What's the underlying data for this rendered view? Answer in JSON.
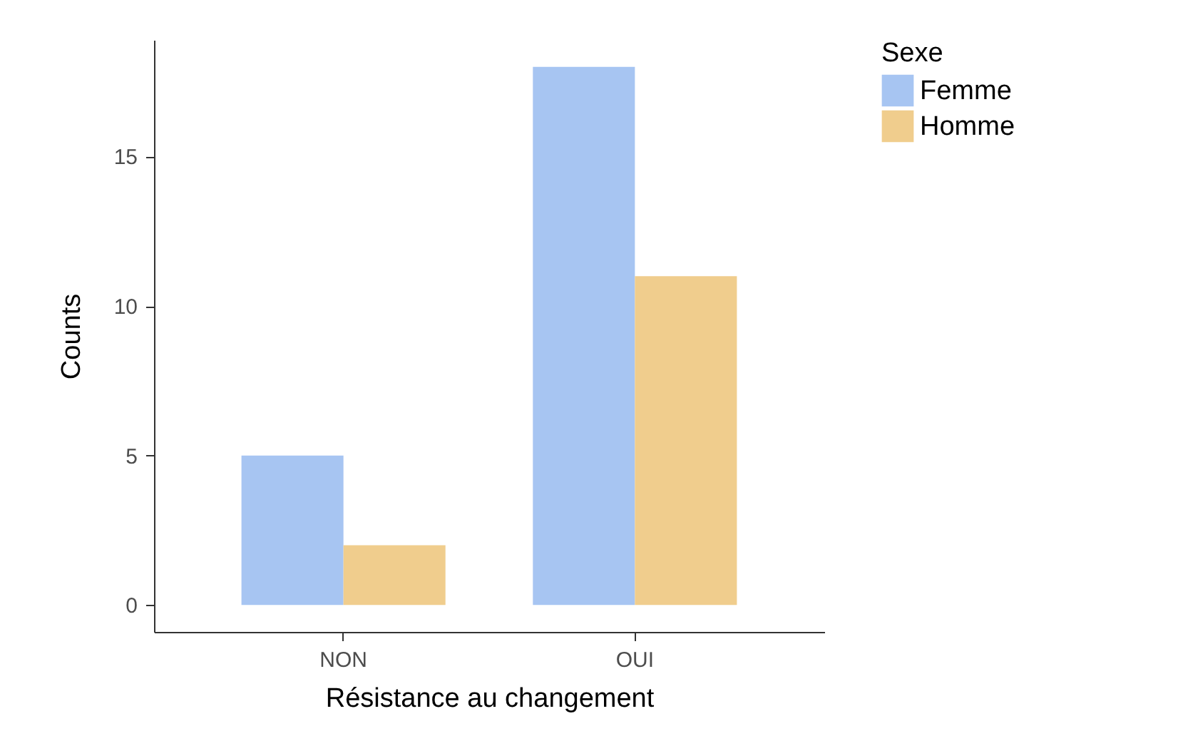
{
  "chart_data": {
    "type": "bar",
    "xlabel": "Résistance au changement",
    "ylabel": "Counts",
    "legend_title": "Sexe",
    "categories": [
      "NON",
      "OUI"
    ],
    "series": [
      {
        "name": "Femme",
        "color": "#a7c5f2",
        "values": [
          5,
          18
        ]
      },
      {
        "name": "Homme",
        "color": "#f0cd8d",
        "values": [
          2,
          11
        ]
      }
    ],
    "ylim": [
      -0.9,
      18.9
    ],
    "yticks": [
      0,
      5,
      10,
      15
    ],
    "grid": false,
    "legend": "right"
  }
}
